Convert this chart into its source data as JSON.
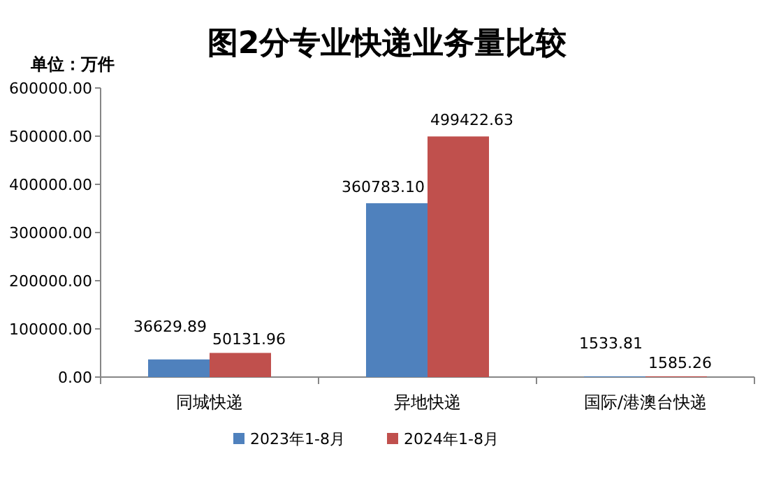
{
  "chart_data": {
    "type": "bar",
    "title": "图2分专业快递业务量比较",
    "ylabel": "单位：万件",
    "categories": [
      "同城快递",
      "异地快递",
      "国际/港澳台快递"
    ],
    "series": [
      {
        "name": "2023年1-8月",
        "color": "#4f81bd",
        "values": [
          36629.89,
          360783.1,
          1533.81
        ],
        "value_labels": [
          "36629.89",
          "360783.10",
          "1533.81"
        ]
      },
      {
        "name": "2024年1-8月",
        "color": "#c0504d",
        "values": [
          50131.96,
          499422.63,
          1585.26
        ],
        "value_labels": [
          "50131.96",
          "499422.63",
          "1585.26"
        ]
      }
    ],
    "ylim": [
      0,
      600000
    ],
    "yticks": [
      {
        "value": 0,
        "label": "0.00"
      },
      {
        "value": 100000,
        "label": "100000.00"
      },
      {
        "value": 200000,
        "label": "200000.00"
      },
      {
        "value": 300000,
        "label": "300000.00"
      },
      {
        "value": 400000,
        "label": "400000.00"
      },
      {
        "value": 500000,
        "label": "500000.00"
      },
      {
        "value": 600000,
        "label": "600000.00"
      }
    ],
    "legend": "bottom"
  }
}
